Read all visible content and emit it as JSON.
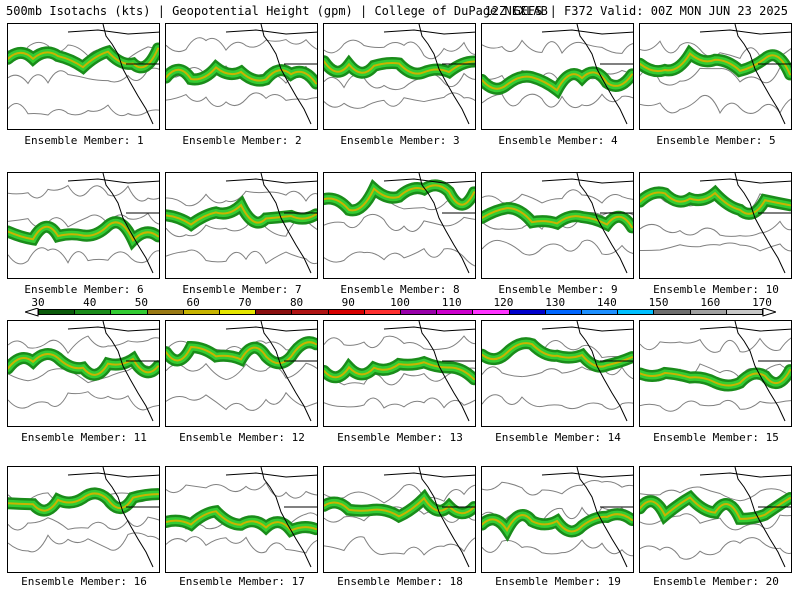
{
  "header": {
    "title_left": "500mb Isotachs (kts) | Geopotential Height (gpm) | College of DuPage NEXLAB",
    "title_right": "12Z GEFS | F372 Valid: 00Z MON JUN 23 2025"
  },
  "colorbar": {
    "labels": [
      "30",
      "40",
      "50",
      "60",
      "70",
      "80",
      "90",
      "100",
      "110",
      "120",
      "130",
      "140",
      "150",
      "160",
      "170"
    ],
    "colors": [
      "#0a5a0a",
      "#1a8c1a",
      "#33cc33",
      "#9a7a14",
      "#c8b400",
      "#e6e600",
      "#8b1010",
      "#b01414",
      "#d80000",
      "#ff3030",
      "#9900aa",
      "#cc00cc",
      "#ff33ff",
      "#0000cc",
      "#0066ff",
      "#1e90ff",
      "#00c0ff",
      "#6e6e6e",
      "#a0a0a0",
      "#c8c8c8"
    ]
  },
  "members": [
    {
      "label": "Ensemble Member: 1"
    },
    {
      "label": "Ensemble Member: 2"
    },
    {
      "label": "Ensemble Member: 3"
    },
    {
      "label": "Ensemble Member: 4"
    },
    {
      "label": "Ensemble Member: 5"
    },
    {
      "label": "Ensemble Member: 6"
    },
    {
      "label": "Ensemble Member: 7"
    },
    {
      "label": "Ensemble Member: 8"
    },
    {
      "label": "Ensemble Member: 9"
    },
    {
      "label": "Ensemble Member: 10"
    },
    {
      "label": "Ensemble Member: 11"
    },
    {
      "label": "Ensemble Member: 12"
    },
    {
      "label": "Ensemble Member: 13"
    },
    {
      "label": "Ensemble Member: 14"
    },
    {
      "label": "Ensemble Member: 15"
    },
    {
      "label": "Ensemble Member: 16"
    },
    {
      "label": "Ensemble Member: 17"
    },
    {
      "label": "Ensemble Member: 18"
    },
    {
      "label": "Ensemble Member: 19"
    },
    {
      "label": "Ensemble Member: 20"
    }
  ]
}
